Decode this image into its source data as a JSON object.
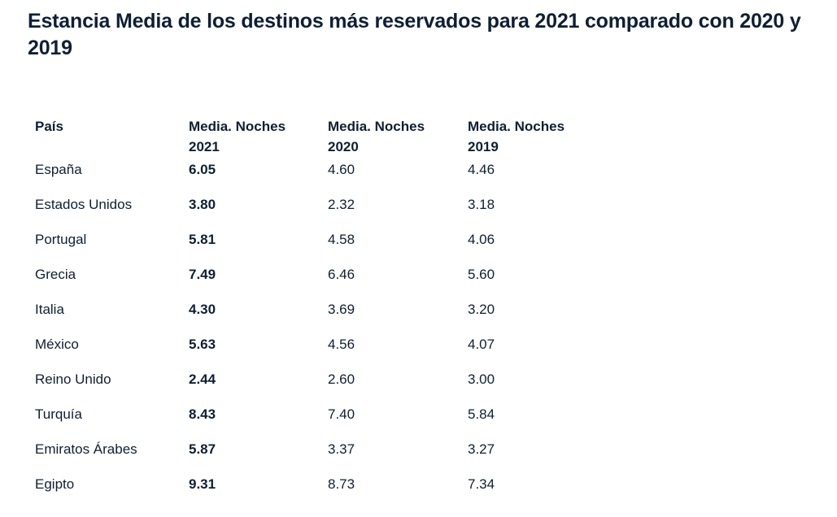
{
  "title": "Estancia Media de los destinos más reservados para 2021 comparado con 2020 y 2019",
  "table": {
    "headers": [
      "País",
      "Media. Noches\n2021",
      "Media. Noches\n2020",
      "Media. Noches\n2019"
    ],
    "rows": [
      {
        "pais": "España",
        "n2021": "6.05",
        "n2020": "4.60",
        "n2019": "4.46"
      },
      {
        "pais": "Estados Unidos",
        "n2021": "3.80",
        "n2020": "2.32",
        "n2019": "3.18"
      },
      {
        "pais": "Portugal",
        "n2021": "5.81",
        "n2020": "4.58",
        "n2019": "4.06"
      },
      {
        "pais": "Grecia",
        "n2021": "7.49",
        "n2020": "6.46",
        "n2019": "5.60"
      },
      {
        "pais": "Italia",
        "n2021": "4.30",
        "n2020": "3.69",
        "n2019": "3.20"
      },
      {
        "pais": "México",
        "n2021": "5.63",
        "n2020": "4.56",
        "n2019": "4.07"
      },
      {
        "pais": "Reino Unido",
        "n2021": "2.44",
        "n2020": "2.60",
        "n2019": "3.00"
      },
      {
        "pais": "Turquía",
        "n2021": "8.43",
        "n2020": "7.40",
        "n2019": "5.84"
      },
      {
        "pais": "Emiratos Árabes",
        "n2021": "5.87",
        "n2020": "3.37",
        "n2019": "3.27"
      },
      {
        "pais": "Egipto",
        "n2021": "9.31",
        "n2020": "8.73",
        "n2019": "7.34"
      }
    ]
  }
}
